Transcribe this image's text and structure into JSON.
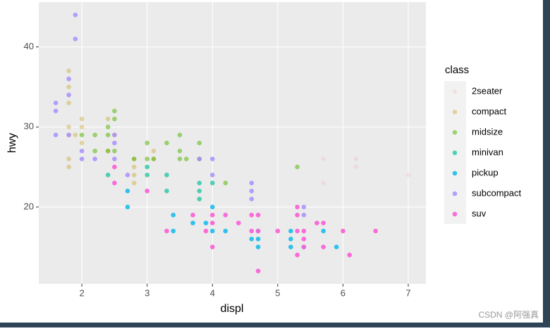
{
  "chart_data": {
    "type": "scatter",
    "x_label": "displ",
    "y_label": "hwy",
    "xlim": [
      1.34,
      7.27
    ],
    "ylim": [
      10.4,
      45.6
    ],
    "xticks": [
      2,
      3,
      4,
      5,
      6,
      7
    ],
    "yticks": [
      20,
      30,
      40
    ],
    "grid": true,
    "legend_title": "class",
    "legend_position": "right",
    "series": [
      {
        "name": "2seater",
        "color": "#F8766D22",
        "x": [
          5.7,
          5.7,
          6.2,
          6.2,
          7.0
        ],
        "values": [
          26,
          23,
          26,
          25,
          24
        ]
      },
      {
        "name": "compact",
        "color": "#C49A0055",
        "x": [
          1.8,
          2.0,
          2.0,
          2.8,
          3.1,
          1.8,
          1.8,
          2.0,
          2.8,
          2.4,
          3.1,
          1.8,
          1.8,
          1.8,
          1.8,
          2.8,
          2.8,
          1.9,
          2.5,
          2.4
        ],
        "values": [
          29,
          31,
          30,
          26,
          27,
          26,
          25,
          28,
          25,
          27,
          26,
          37,
          35,
          33,
          30,
          23,
          24,
          29,
          29,
          31
        ]
      },
      {
        "name": "midsize",
        "color": "#53B40088",
        "x": [
          2.4,
          3.0,
          3.3,
          3.5,
          3.8,
          3.8,
          2.5,
          2.5,
          3.5,
          3.6,
          2.4,
          2.2,
          2.5,
          3.1,
          3.5,
          4.2,
          5.3,
          2.0,
          2.2,
          2.8,
          3.0,
          2.4
        ],
        "values": [
          30,
          26,
          28,
          29,
          28,
          26,
          32,
          31,
          26,
          26,
          27,
          27,
          27,
          26,
          27,
          23,
          25,
          29,
          29,
          26,
          28,
          29
        ]
      },
      {
        "name": "minivan",
        "color": "#00C094aa",
        "x": [
          2.4,
          3.0,
          3.3,
          3.3,
          3.8,
          3.8,
          4.0,
          3.8,
          3.0
        ],
        "values": [
          24,
          24,
          24,
          22,
          22,
          21,
          23,
          23,
          25
        ]
      },
      {
        "name": "pickup",
        "color": "#00B6EBcc",
        "x": [
          2.7,
          2.7,
          3.4,
          3.4,
          3.7,
          4.0,
          4.7,
          4.7,
          5.2,
          5.2,
          5.7,
          5.9,
          4.0,
          4.2,
          4.6,
          5.4,
          5.2,
          3.9,
          4.7
        ],
        "values": [
          20,
          22,
          19,
          17,
          18,
          17,
          17,
          16,
          17,
          15,
          17,
          15,
          20,
          17,
          16,
          15,
          16,
          18,
          15
        ]
      },
      {
        "name": "subcompact",
        "color": "#A58AFFcc",
        "x": [
          1.6,
          1.6,
          1.6,
          1.8,
          1.8,
          1.9,
          1.9,
          2.0,
          2.0,
          2.2,
          2.5,
          2.5,
          2.5,
          2.7,
          3.8,
          4.0,
          4.6,
          4.6,
          4.0,
          5.4,
          5.4,
          4.6,
          1.8
        ],
        "values": [
          33,
          32,
          29,
          34,
          36,
          41,
          44,
          27,
          26,
          26,
          26,
          28,
          29,
          24,
          26,
          26,
          23,
          22,
          24,
          20,
          19,
          21,
          29
        ]
      },
      {
        "name": "suv",
        "color": "#FB61D7ee",
        "x": [
          2.5,
          2.5,
          3.0,
          3.3,
          3.7,
          3.9,
          4.0,
          4.0,
          4.0,
          4.2,
          4.4,
          4.6,
          4.7,
          4.7,
          5.0,
          5.3,
          5.3,
          5.3,
          5.3,
          5.4,
          5.4,
          5.4,
          5.6,
          5.7,
          5.7,
          6.0,
          6.1,
          6.5,
          4.6,
          4.7
        ],
        "values": [
          25,
          23,
          22,
          17,
          19,
          17,
          19,
          18,
          15,
          19,
          18,
          19,
          19,
          12,
          17,
          20,
          19,
          17,
          14,
          17,
          16,
          15,
          18,
          18,
          15,
          17,
          14,
          17,
          17,
          17
        ]
      }
    ]
  },
  "watermark": "CSDN @阿强真"
}
